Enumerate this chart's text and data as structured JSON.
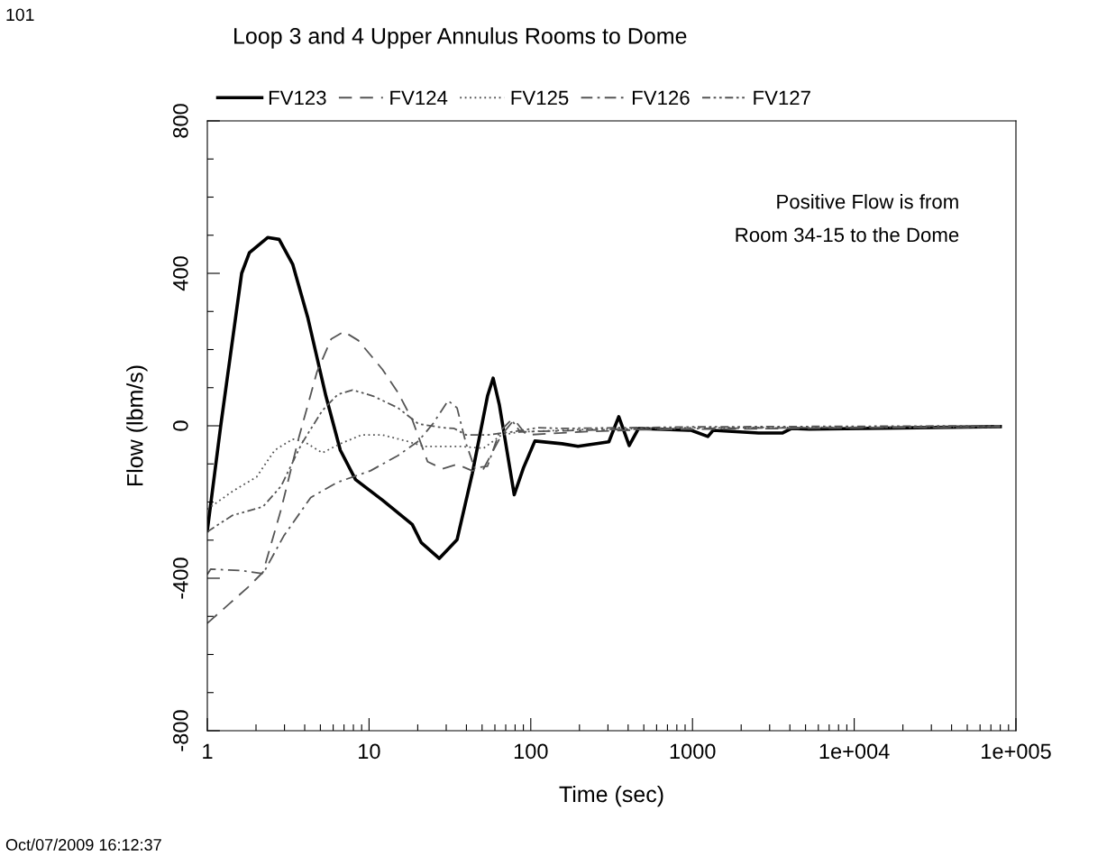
{
  "chart_data": {
    "type": "line",
    "title": "Loop 3 and 4 Upper Annulus Rooms to Dome",
    "xlabel": "Time (sec)",
    "ylabel": "Flow (lbm/s)",
    "log": "x",
    "grid": false,
    "legend": "top",
    "marker": "none",
    "xlim": [
      1,
      100000
    ],
    "xticks": [
      1,
      {
        "value": 2,
        "label": null
      },
      {
        "value": 3,
        "label": null
      },
      {
        "value": 4,
        "label": null
      },
      {
        "value": 5,
        "label": null
      },
      {
        "value": 6,
        "label": null
      },
      {
        "value": 7,
        "label": null
      },
      {
        "value": 8,
        "label": null
      },
      {
        "value": 9,
        "label": null
      },
      10,
      {
        "value": 20,
        "label": null
      },
      {
        "value": 30,
        "label": null
      },
      {
        "value": 40,
        "label": null
      },
      {
        "value": 50,
        "label": null
      },
      {
        "value": 60,
        "label": null
      },
      {
        "value": 70,
        "label": null
      },
      {
        "value": 80,
        "label": null
      },
      {
        "value": 90,
        "label": null
      },
      100,
      {
        "value": 200,
        "label": null
      },
      {
        "value": 300,
        "label": null
      },
      {
        "value": 400,
        "label": null
      },
      {
        "value": 500,
        "label": null
      },
      {
        "value": 600,
        "label": null
      },
      {
        "value": 700,
        "label": null
      },
      {
        "value": 800,
        "label": null
      },
      {
        "value": 900,
        "label": null
      },
      1000,
      {
        "value": 2000,
        "label": null
      },
      {
        "value": 3000,
        "label": null
      },
      {
        "value": 4000,
        "label": null
      },
      {
        "value": 5000,
        "label": null
      },
      {
        "value": 6000,
        "label": null
      },
      {
        "value": 7000,
        "label": null
      },
      {
        "value": 8000,
        "label": null
      },
      {
        "value": 9000,
        "label": null
      },
      {
        "value": 10000,
        "label": "1e+004"
      },
      {
        "value": 20000,
        "label": null
      },
      {
        "value": 30000,
        "label": null
      },
      {
        "value": 40000,
        "label": null
      },
      {
        "value": 50000,
        "label": null
      },
      {
        "value": 60000,
        "label": null
      },
      {
        "value": 70000,
        "label": null
      },
      {
        "value": 80000,
        "label": null
      },
      {
        "value": 90000,
        "label": null
      },
      {
        "value": 100000,
        "label": "1e+005"
      }
    ],
    "ylim": [
      -800,
      800
    ],
    "yticks": [
      -800,
      {
        "value": -700,
        "label": null
      },
      {
        "value": -600,
        "label": null
      },
      {
        "value": -500,
        "label": null
      },
      -400,
      {
        "value": -300,
        "label": null
      },
      {
        "value": -200,
        "label": null
      },
      {
        "value": -100,
        "label": null
      },
      0,
      {
        "value": 100,
        "label": null
      },
      {
        "value": 200,
        "label": null
      },
      {
        "value": 300,
        "label": null
      },
      400,
      {
        "value": 500,
        "label": null
      },
      {
        "value": 600,
        "label": null
      },
      {
        "value": 700,
        "label": null
      },
      800
    ],
    "annotations": [
      "101",
      "Positive Flow is from\nRoom 34-15 to the Dome",
      "Oct/07/2009 16:12:37"
    ],
    "series": [
      {
        "name": "FV123",
        "color": "#000000",
        "line_style": "solid",
        "x": [
          1,
          1.21,
          1.63,
          1.82,
          2.36,
          2.78,
          3.37,
          4.19,
          5.41,
          6.64,
          8.25,
          12.1,
          18.5,
          21,
          27.2,
          35,
          43.5,
          54,
          58.5,
          64,
          79,
          90,
          106,
          156,
          196,
          304,
          350,
          406,
          464,
          982,
          1245,
          1340,
          2560,
          3590,
          4100,
          5270,
          80000
        ],
        "values": [
          -275,
          0,
          400,
          454,
          494,
          489,
          424,
          282,
          78,
          -64,
          -141,
          -195,
          -259,
          -306,
          -348,
          -299,
          -125,
          78,
          125,
          54,
          -181,
          -111,
          -40,
          -47,
          -54,
          -42,
          24,
          -52,
          -7,
          -12,
          -28,
          -12,
          -19,
          -19,
          -7,
          -9,
          -2
        ]
      },
      {
        "name": "FV124",
        "color": "#555555",
        "line_style": "dashed",
        "x": [
          1,
          1.78,
          2.21,
          2.86,
          3.68,
          4.76,
          5.84,
          6.99,
          8.58,
          12.1,
          15.1,
          18.5,
          23,
          28.5,
          35,
          43.5,
          51,
          66,
          79,
          94,
          200,
          500,
          2000,
          80000
        ],
        "values": [
          -518,
          -424,
          -384,
          -219,
          -31,
          141,
          228,
          247,
          224,
          148,
          87,
          16,
          -94,
          -113,
          -101,
          -118,
          -113,
          -24,
          16,
          -24,
          -16,
          -10,
          -8,
          -3
        ]
      },
      {
        "name": "FV125",
        "color": "#555555",
        "line_style": "dotted",
        "x": [
          1,
          1.43,
          2.02,
          2.61,
          3.37,
          3.98,
          5.14,
          6.64,
          9.0,
          12.1,
          17,
          22,
          36.7,
          51,
          66,
          86,
          200,
          1000,
          80000
        ],
        "values": [
          -219,
          -172,
          -134,
          -64,
          -35,
          -42,
          -71,
          -47,
          -24,
          -24,
          -40,
          -54,
          -54,
          -59,
          -24,
          -16,
          -10,
          -5,
          -3
        ]
      },
      {
        "name": "FV126",
        "color": "#555555",
        "line_style": "dashdot",
        "x": [
          1,
          1.05,
          1.63,
          2.21,
          2.97,
          4.36,
          6.4,
          10.2,
          15.1,
          20.2,
          25,
          30.8,
          35,
          39.8,
          45,
          54,
          64,
          76,
          86,
          300,
          2000,
          80000
        ],
        "values": [
          -390,
          -376,
          -380,
          -388,
          -289,
          -188,
          -148,
          -118,
          -78,
          -40,
          7,
          66,
          47,
          -47,
          -111,
          -106,
          -16,
          16,
          -16,
          -10,
          -6,
          -3
        ]
      },
      {
        "name": "FV127",
        "color": "#555555",
        "line_style": "dashdotdot",
        "x": [
          1,
          1.43,
          2.21,
          2.86,
          3.83,
          5.14,
          6.4,
          7.9,
          10.6,
          15.1,
          20.2,
          28.5,
          33.6,
          39.8,
          54,
          76,
          111,
          156,
          1000,
          80000
        ],
        "values": [
          -278,
          -235,
          -212,
          -158,
          -47,
          40,
          82,
          94,
          78,
          47,
          5,
          -5,
          -7,
          -24,
          -24,
          -16,
          -5,
          -7,
          -3,
          0
        ]
      }
    ]
  }
}
